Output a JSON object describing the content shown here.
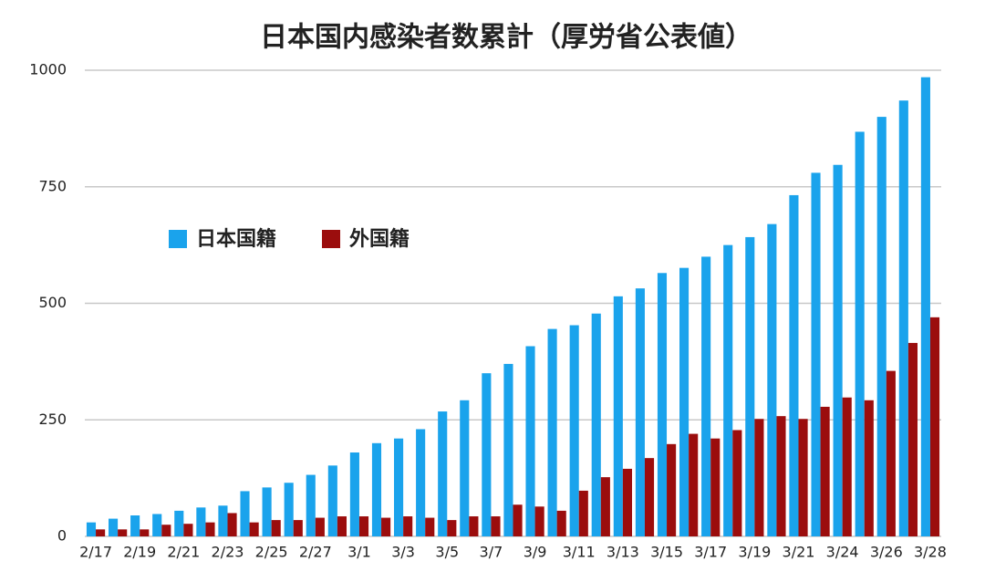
{
  "chart_data": {
    "type": "bar",
    "title": "日本国内感染者数累計（厚労省公表値）",
    "categories": [
      "2/17",
      null,
      "2/19",
      null,
      "2/21",
      null,
      "2/23",
      null,
      "2/25",
      null,
      "2/27",
      null,
      "3/1",
      null,
      "3/3",
      null,
      "3/5",
      null,
      "3/7",
      null,
      "3/9",
      null,
      "3/11",
      null,
      "3/13",
      null,
      "3/15",
      null,
      "3/17",
      null,
      "3/19",
      null,
      "3/21",
      null,
      "3/24",
      null,
      "3/26",
      null,
      "3/28"
    ],
    "series": [
      {
        "name": "日本国籍",
        "color": "#1aa3ec",
        "values": [
          30,
          38,
          45,
          48,
          55,
          62,
          66,
          97,
          105,
          115,
          132,
          152,
          180,
          200,
          210,
          230,
          268,
          292,
          350,
          370,
          408,
          445,
          453,
          478,
          515,
          532,
          565,
          576,
          600,
          625,
          642,
          670,
          732,
          780,
          797,
          868,
          900,
          935,
          985
        ]
      },
      {
        "name": "外国籍",
        "color": "#9b0d0d",
        "values": [
          15,
          15,
          15,
          25,
          27,
          30,
          50,
          30,
          35,
          35,
          40,
          43,
          43,
          40,
          43,
          40,
          35,
          43,
          43,
          68,
          64,
          55,
          98,
          127,
          145,
          168,
          198,
          220,
          210,
          228,
          252,
          258,
          252,
          278,
          298,
          292,
          355,
          415,
          470
        ]
      }
    ],
    "ylim": [
      0,
      1000
    ],
    "yticks": [
      0,
      250,
      500,
      750,
      1000
    ],
    "grid": true,
    "legend": "upper left"
  }
}
